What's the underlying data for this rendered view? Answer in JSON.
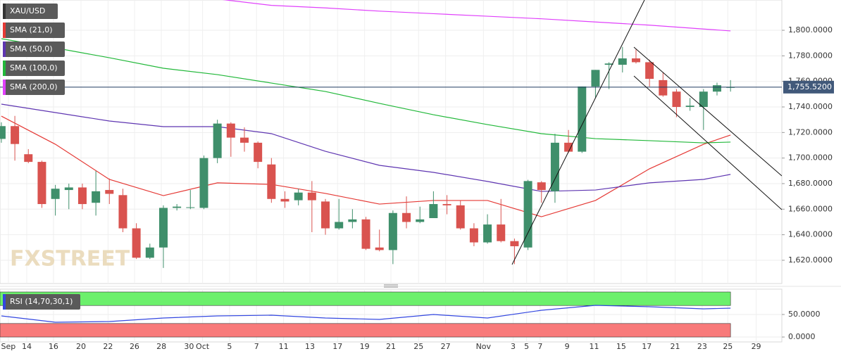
{
  "chart_data": {
    "type": "candlestick",
    "symbol": "XAU/USD",
    "watermark": "FXSTREET",
    "grid": true,
    "xlim": [
      -0.1,
      57.8
    ],
    "xticks": [
      {
        "value": 0.52,
        "label": "Sep"
      },
      {
        "value": 1.88,
        "label": "14"
      },
      {
        "value": 3.86,
        "label": "16"
      },
      {
        "value": 5.9,
        "label": "20"
      },
      {
        "value": 7.9,
        "label": "22"
      },
      {
        "value": 9.86,
        "label": "26"
      },
      {
        "value": 11.85,
        "label": "28"
      },
      {
        "value": 13.9,
        "label": "30"
      },
      {
        "value": 14.9,
        "label": "Oct"
      },
      {
        "value": 16.9,
        "label": "5"
      },
      {
        "value": 18.9,
        "label": "7"
      },
      {
        "value": 20.9,
        "label": "11"
      },
      {
        "value": 22.85,
        "label": "13"
      },
      {
        "value": 24.9,
        "label": "17"
      },
      {
        "value": 26.9,
        "label": "19"
      },
      {
        "value": 28.85,
        "label": "21"
      },
      {
        "value": 30.9,
        "label": "25"
      },
      {
        "value": 32.9,
        "label": "27"
      },
      {
        "value": 35.7,
        "label": "Nov"
      },
      {
        "value": 37.9,
        "label": "3"
      },
      {
        "value": 38.9,
        "label": "5"
      },
      {
        "value": 39.9,
        "label": "7"
      },
      {
        "value": 41.9,
        "label": "9"
      },
      {
        "value": 43.9,
        "label": "11"
      },
      {
        "value": 45.9,
        "label": "15"
      },
      {
        "value": 47.8,
        "label": "17"
      },
      {
        "value": 49.9,
        "label": "21"
      },
      {
        "value": 51.9,
        "label": "23"
      },
      {
        "value": 53.8,
        "label": "25"
      },
      {
        "value": 55.9,
        "label": "29"
      }
    ],
    "ylim": [
      1601.8,
      1823.7
    ],
    "yticks": [
      {
        "value": 1620,
        "label": "1,620.0000"
      },
      {
        "value": 1640,
        "label": "1,640.0000"
      },
      {
        "value": 1660,
        "label": "1,660.0000"
      },
      {
        "value": 1680,
        "label": "1,680.0000"
      },
      {
        "value": 1700,
        "label": "1,700.0000"
      },
      {
        "value": 1720,
        "label": "1,720.0000"
      },
      {
        "value": 1740,
        "label": "1,740.0000"
      },
      {
        "value": 1760,
        "label": "1,760.0000"
      },
      {
        "value": 1780,
        "label": "1,780.0000"
      },
      {
        "value": 1800,
        "label": "1,800.0000"
      }
    ],
    "candles": {
      "up_color": "#3f8f6b",
      "down_color": "#d9534f",
      "x": [
        0,
        1,
        2,
        3,
        4,
        5,
        6,
        7,
        8,
        9,
        10,
        11,
        12,
        13,
        14,
        15,
        16,
        17,
        18,
        19,
        20,
        21,
        22,
        23,
        24,
        25,
        26,
        27,
        28,
        29,
        30,
        31,
        32,
        33,
        34,
        35,
        36,
        37,
        38,
        39,
        40,
        41,
        42,
        43,
        44,
        45,
        46,
        47,
        48,
        49,
        50,
        51,
        52,
        53,
        54
      ],
      "open": [
        1715,
        1725,
        1703,
        1697,
        1668,
        1675,
        1677,
        1665,
        1675,
        1671,
        1645,
        1622,
        1630,
        1661,
        1661,
        1661,
        1700,
        1727,
        1716,
        1712,
        1695,
        1668,
        1667,
        1673,
        1666,
        1645,
        1650,
        1652,
        1630,
        1628,
        1657,
        1650,
        1653,
        1664,
        1663,
        1645,
        1634,
        1648,
        1635,
        1630,
        1681,
        1674,
        1712,
        1705,
        1756,
        1773,
        1773,
        1778,
        1775,
        1761,
        1752,
        1740,
        1740,
        1752,
        1755
      ],
      "high": [
        1728,
        1733,
        1707,
        1698,
        1679,
        1680,
        1680,
        1690,
        1684,
        1676,
        1649,
        1633,
        1663,
        1664,
        1675,
        1702,
        1730,
        1728,
        1724,
        1713,
        1700,
        1674,
        1676,
        1682,
        1668,
        1668,
        1660,
        1654,
        1644,
        1659,
        1670,
        1662,
        1674,
        1671,
        1667,
        1649,
        1656,
        1668,
        1637,
        1683,
        1682,
        1719,
        1722,
        1756,
        1769,
        1775,
        1787,
        1785,
        1777,
        1767,
        1754,
        1747,
        1754,
        1759,
        1761
      ],
      "low": [
        1712,
        1698,
        1696,
        1661,
        1655,
        1660,
        1660,
        1655,
        1664,
        1642,
        1621,
        1621,
        1614,
        1659,
        1660,
        1660,
        1696,
        1701,
        1705,
        1692,
        1665,
        1661,
        1663,
        1642,
        1640,
        1644,
        1645,
        1628,
        1627,
        1617,
        1645,
        1649,
        1653,
        1656,
        1644,
        1631,
        1633,
        1634,
        1617,
        1628,
        1665,
        1665,
        1704,
        1704,
        1747,
        1754,
        1767,
        1774,
        1756,
        1748,
        1732,
        1737,
        1722,
        1749,
        1752
      ],
      "close": [
        1725,
        1711,
        1697,
        1664,
        1676,
        1677,
        1664,
        1674,
        1672,
        1645,
        1622,
        1630,
        1661,
        1662,
        1661.5,
        1700,
        1727,
        1716,
        1712,
        1697,
        1668,
        1666,
        1673,
        1667,
        1645,
        1650,
        1652,
        1629,
        1628,
        1657,
        1650,
        1652,
        1664,
        1663,
        1645,
        1634,
        1648,
        1635,
        1631,
        1682,
        1675,
        1712,
        1705,
        1756,
        1769,
        1774,
        1778,
        1775,
        1762,
        1749,
        1740,
        1741,
        1752,
        1757,
        1755.52
      ]
    },
    "series": [
      {
        "name": "SMA (21,0)",
        "color": "#e53935",
        "x": [
          0,
          4,
          8,
          12,
          16,
          20,
          24,
          28,
          32,
          36,
          40,
          44,
          48,
          52,
          54
        ],
        "values": [
          1732.8,
          1710.8,
          1683.3,
          1670.6,
          1680.6,
          1679.4,
          1672.3,
          1664,
          1666.8,
          1666.8,
          1654.1,
          1666.8,
          1691.6,
          1710.8,
          1718
        ]
      },
      {
        "name": "SMA (50,0)",
        "color": "#5e35b1",
        "x": [
          0,
          4,
          8,
          12,
          16,
          20,
          24,
          28,
          32,
          36,
          40,
          44,
          48,
          52,
          54
        ],
        "values": [
          1742.2,
          1735.6,
          1729,
          1724.6,
          1724.6,
          1719.1,
          1705.3,
          1694.3,
          1688.8,
          1681.7,
          1673.9,
          1675,
          1680.6,
          1683.3,
          1687.2
        ]
      },
      {
        "name": "SMA (100,0)",
        "color": "#22b83a",
        "x": [
          0,
          4,
          8,
          12,
          16,
          20,
          24,
          28,
          32,
          36,
          40,
          44,
          48,
          52,
          54
        ],
        "values": [
          1793.4,
          1786.2,
          1778.5,
          1770.3,
          1765.3,
          1758.7,
          1752.1,
          1742.8,
          1733.9,
          1726.2,
          1719.1,
          1715.2,
          1713.6,
          1711.9,
          1712.5
        ]
      },
      {
        "name": "SMA (200,0)",
        "color": "#e040fb",
        "x": [
          0,
          4,
          8,
          12,
          16,
          20,
          24,
          28,
          32,
          36,
          40,
          44,
          48,
          52,
          54
        ],
        "values": [
          null,
          null,
          null,
          null,
          1824.5,
          1819.5,
          1817.5,
          1815,
          1813,
          1811,
          1809,
          1806.5,
          1804,
          1801,
          1799.5
        ]
      }
    ],
    "last_price": {
      "value": 1755.52,
      "label": "1,755.5200"
    },
    "rsi": {
      "name": "RSI (14,70,30,1)",
      "color": "#3347e0",
      "ylim": [
        -10.9,
        106.25
      ],
      "yticks": [
        {
          "value": 0,
          "label": "0.0000"
        },
        {
          "value": 50,
          "label": "50.0000"
        }
      ],
      "overbought": [
        70,
        100
      ],
      "oversold": [
        0,
        30
      ],
      "x": [
        0,
        4,
        8,
        12,
        16,
        20,
        24,
        28,
        32,
        36,
        40,
        44,
        48,
        52,
        54
      ],
      "values": [
        46.9,
        32.8,
        34.4,
        42.2,
        46.9,
        48.4,
        42.2,
        39.1,
        50,
        42.2,
        59.4,
        70.3,
        67.2,
        62.5,
        64.1
      ]
    }
  }
}
